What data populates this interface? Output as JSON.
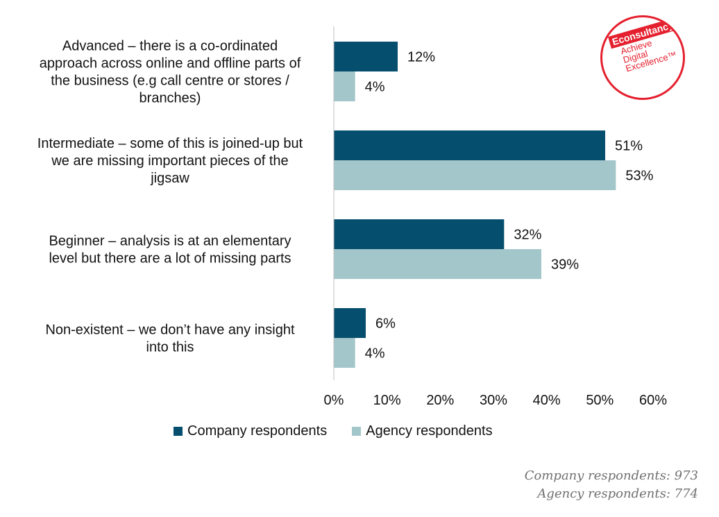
{
  "chart_data": {
    "type": "bar",
    "orientation": "horizontal",
    "categories": [
      [
        "Advanced – there is a co-ordinated",
        "approach across online and offline parts of",
        "the business (e.g call centre or stores /",
        "branches)"
      ],
      [
        "Intermediate – some of this is joined-up but",
        "we are missing important pieces of the",
        "jigsaw"
      ],
      [
        "Beginner – analysis is at an elementary",
        "level but there are a lot of missing parts"
      ],
      [
        "Non-existent – we don’t have any insight",
        "into this"
      ]
    ],
    "series": [
      {
        "name": "Company respondents",
        "color": "#064e6e",
        "values": [
          12,
          51,
          32,
          6
        ],
        "labels": [
          "12%",
          "51%",
          "32%",
          "6%"
        ]
      },
      {
        "name": "Agency respondents",
        "color": "#a3c6ca",
        "values": [
          4,
          53,
          39,
          4
        ],
        "labels": [
          "4%",
          "53%",
          "39%",
          "4%"
        ]
      }
    ],
    "xlim": [
      0,
      60
    ],
    "x_ticks": [
      "0%",
      "10%",
      "20%",
      "30%",
      "40%",
      "50%",
      "60%"
    ],
    "grid": false,
    "legend_position": "bottom"
  },
  "footnote": {
    "line1": "Company respondents: 973",
    "line2": "Agency respondents: 774"
  },
  "logo": {
    "brand": "Econsultancy",
    "line1": "Achieve",
    "line2": "Digital",
    "line3": "Excellence™"
  }
}
